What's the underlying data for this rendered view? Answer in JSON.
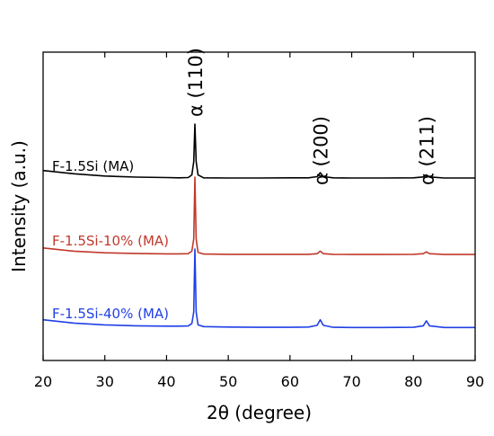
{
  "chart_data": {
    "type": "line",
    "title": "",
    "xlabel": "2θ (degree)",
    "ylabel": "Intensity (a.u.)",
    "xlim": [
      20,
      90
    ],
    "xticks": [
      20,
      30,
      40,
      50,
      60,
      70,
      80,
      90
    ],
    "yticks_shown": false,
    "grid": false,
    "peaks": [
      {
        "label": "α (110)",
        "x": 44.6
      },
      {
        "label": "α (200)",
        "x": 64.9
      },
      {
        "label": "α (211)",
        "x": 82.1
      }
    ],
    "series": [
      {
        "name": "F-1.5Si (MA)",
        "color": "#000000",
        "x": [
          20,
          25,
          30,
          35,
          40,
          42,
          43.5,
          44.1,
          44.4,
          44.6,
          44.8,
          45.1,
          46,
          50,
          55,
          60,
          63,
          64.4,
          64.9,
          65.4,
          67,
          70,
          75,
          80,
          81.6,
          82.1,
          82.6,
          85,
          90
        ],
        "y": [
          0.79,
          0.775,
          0.765,
          0.76,
          0.758,
          0.757,
          0.758,
          0.77,
          0.83,
          1.0,
          0.83,
          0.77,
          0.757,
          0.756,
          0.756,
          0.757,
          0.757,
          0.762,
          0.78,
          0.762,
          0.757,
          0.756,
          0.756,
          0.757,
          0.761,
          0.77,
          0.761,
          0.756,
          0.756
        ]
      },
      {
        "name": "F-1.5Si-10% (MA)",
        "color": "#c0392b",
        "x": [
          20,
          25,
          30,
          35,
          40,
          42,
          43.5,
          44.1,
          44.4,
          44.6,
          44.8,
          45.1,
          46,
          50,
          55,
          60,
          63,
          64.4,
          64.9,
          65.4,
          67,
          70,
          75,
          80,
          81.6,
          82.1,
          82.6,
          85,
          90
        ],
        "y": [
          0.44,
          0.425,
          0.418,
          0.415,
          0.413,
          0.413,
          0.414,
          0.425,
          0.48,
          0.76,
          0.48,
          0.42,
          0.412,
          0.411,
          0.411,
          0.411,
          0.411,
          0.414,
          0.425,
          0.414,
          0.411,
          0.41,
          0.41,
          0.411,
          0.414,
          0.422,
          0.414,
          0.41,
          0.41
        ]
      },
      {
        "name": "F-1.5Si-40% (MA)",
        "color": "#1f3fe6",
        "x": [
          20,
          25,
          30,
          35,
          40,
          42,
          43.5,
          44.1,
          44.4,
          44.6,
          44.8,
          45.1,
          46,
          50,
          55,
          60,
          63,
          64.4,
          64.9,
          65.4,
          67,
          70,
          75,
          80,
          81.6,
          82.1,
          82.6,
          85,
          90
        ],
        "y": [
          0.115,
          0.1,
          0.092,
          0.088,
          0.086,
          0.086,
          0.087,
          0.098,
          0.15,
          0.435,
          0.15,
          0.092,
          0.084,
          0.082,
          0.081,
          0.081,
          0.082,
          0.09,
          0.115,
          0.09,
          0.081,
          0.08,
          0.08,
          0.081,
          0.088,
          0.11,
          0.088,
          0.08,
          0.08
        ]
      }
    ]
  }
}
